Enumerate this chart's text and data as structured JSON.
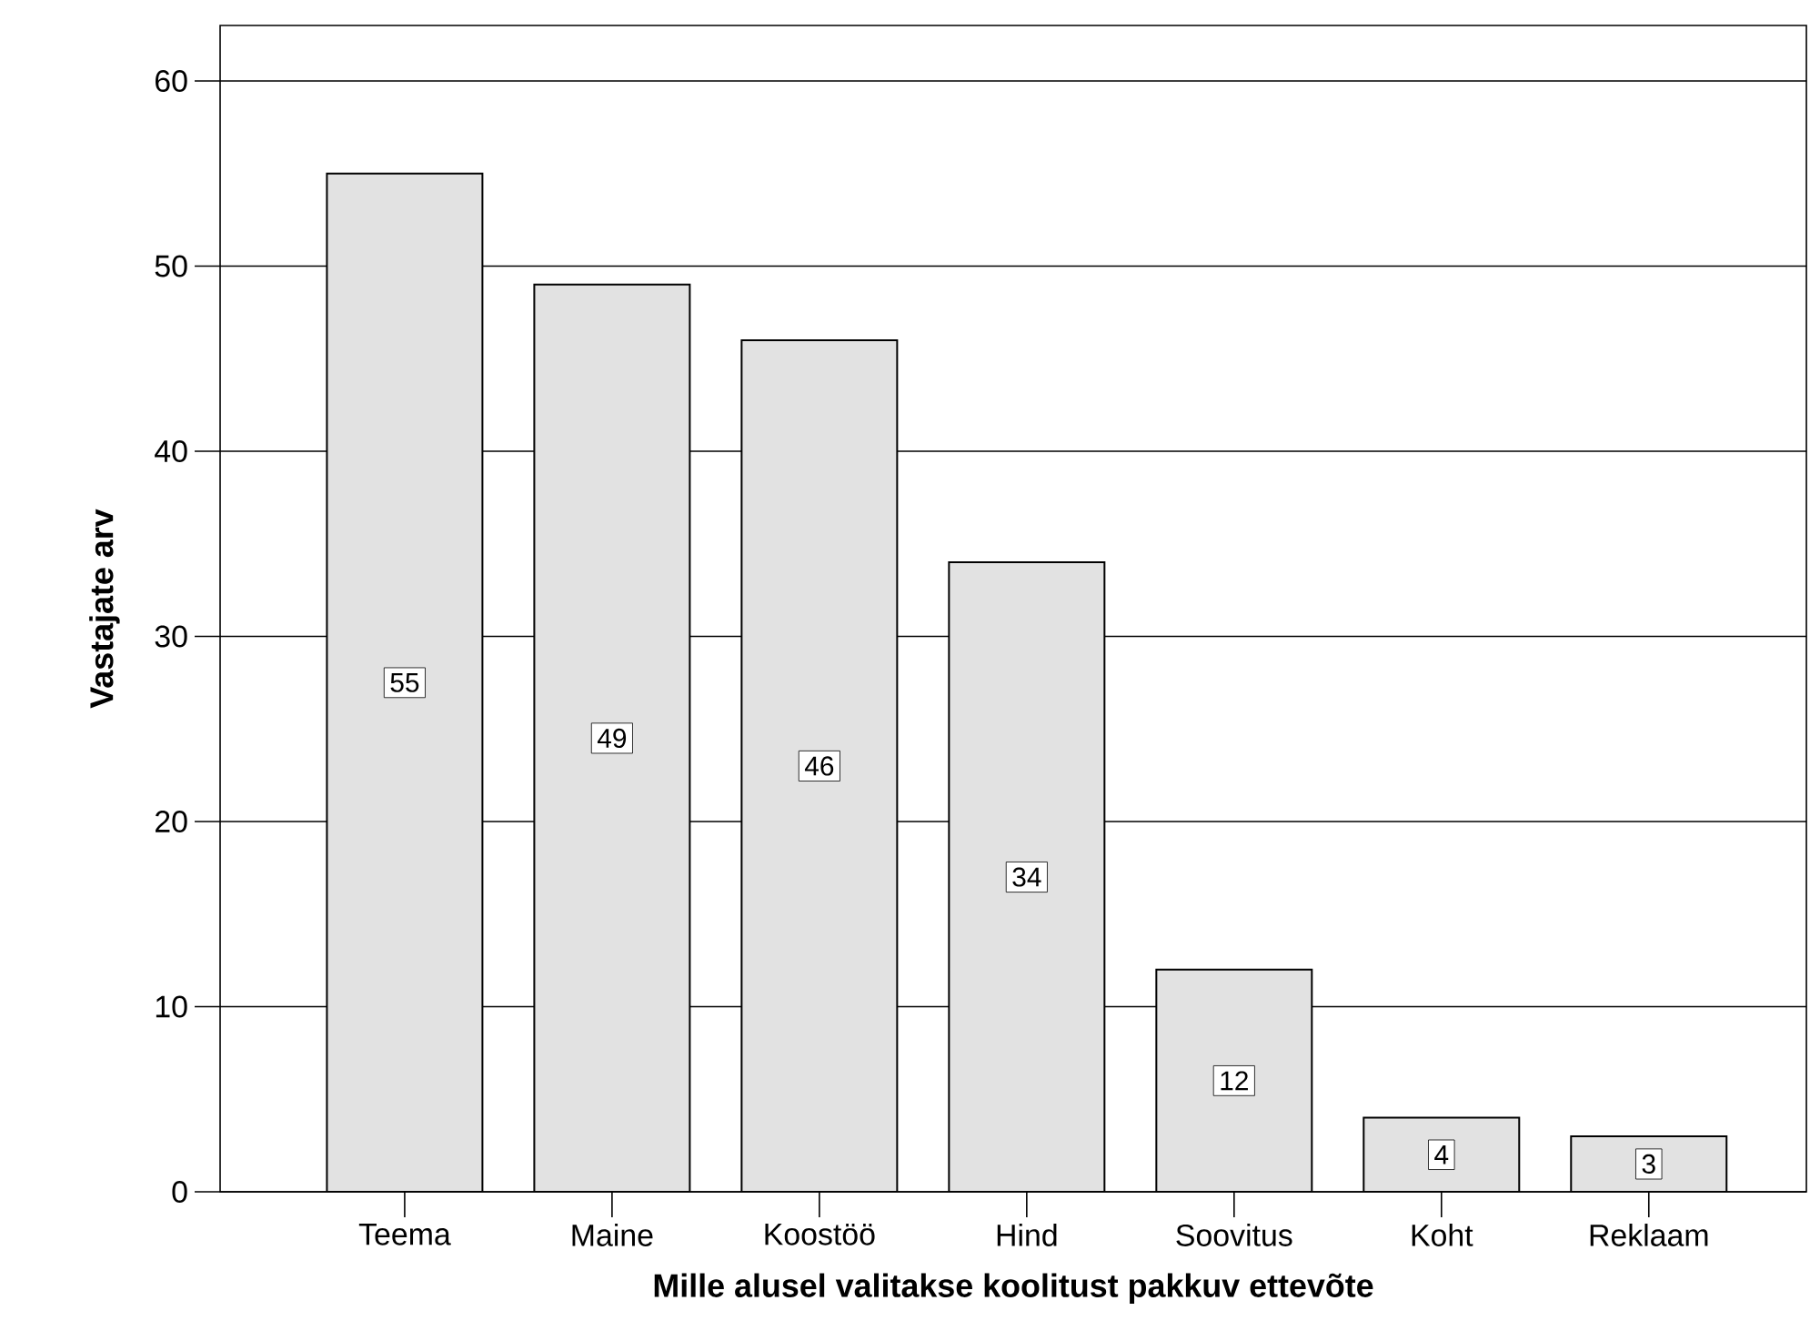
{
  "chart_data": {
    "type": "bar",
    "xlabel": "Mille alusel valitakse koolitust pakkuv ettevõte",
    "ylabel": "Vastajate arv",
    "categories": [
      "Teema",
      "Maine",
      "Koostöö",
      "Hind",
      "Soovitus",
      "Koht",
      "Reklaam"
    ],
    "values": [
      55,
      49,
      46,
      34,
      12,
      4,
      3
    ],
    "color": "#e2e2e2",
    "ylim": [
      0,
      63
    ],
    "yticks": [
      0,
      10,
      20,
      30,
      40,
      50,
      60
    ],
    "grid": "y",
    "data_labels": true
  }
}
